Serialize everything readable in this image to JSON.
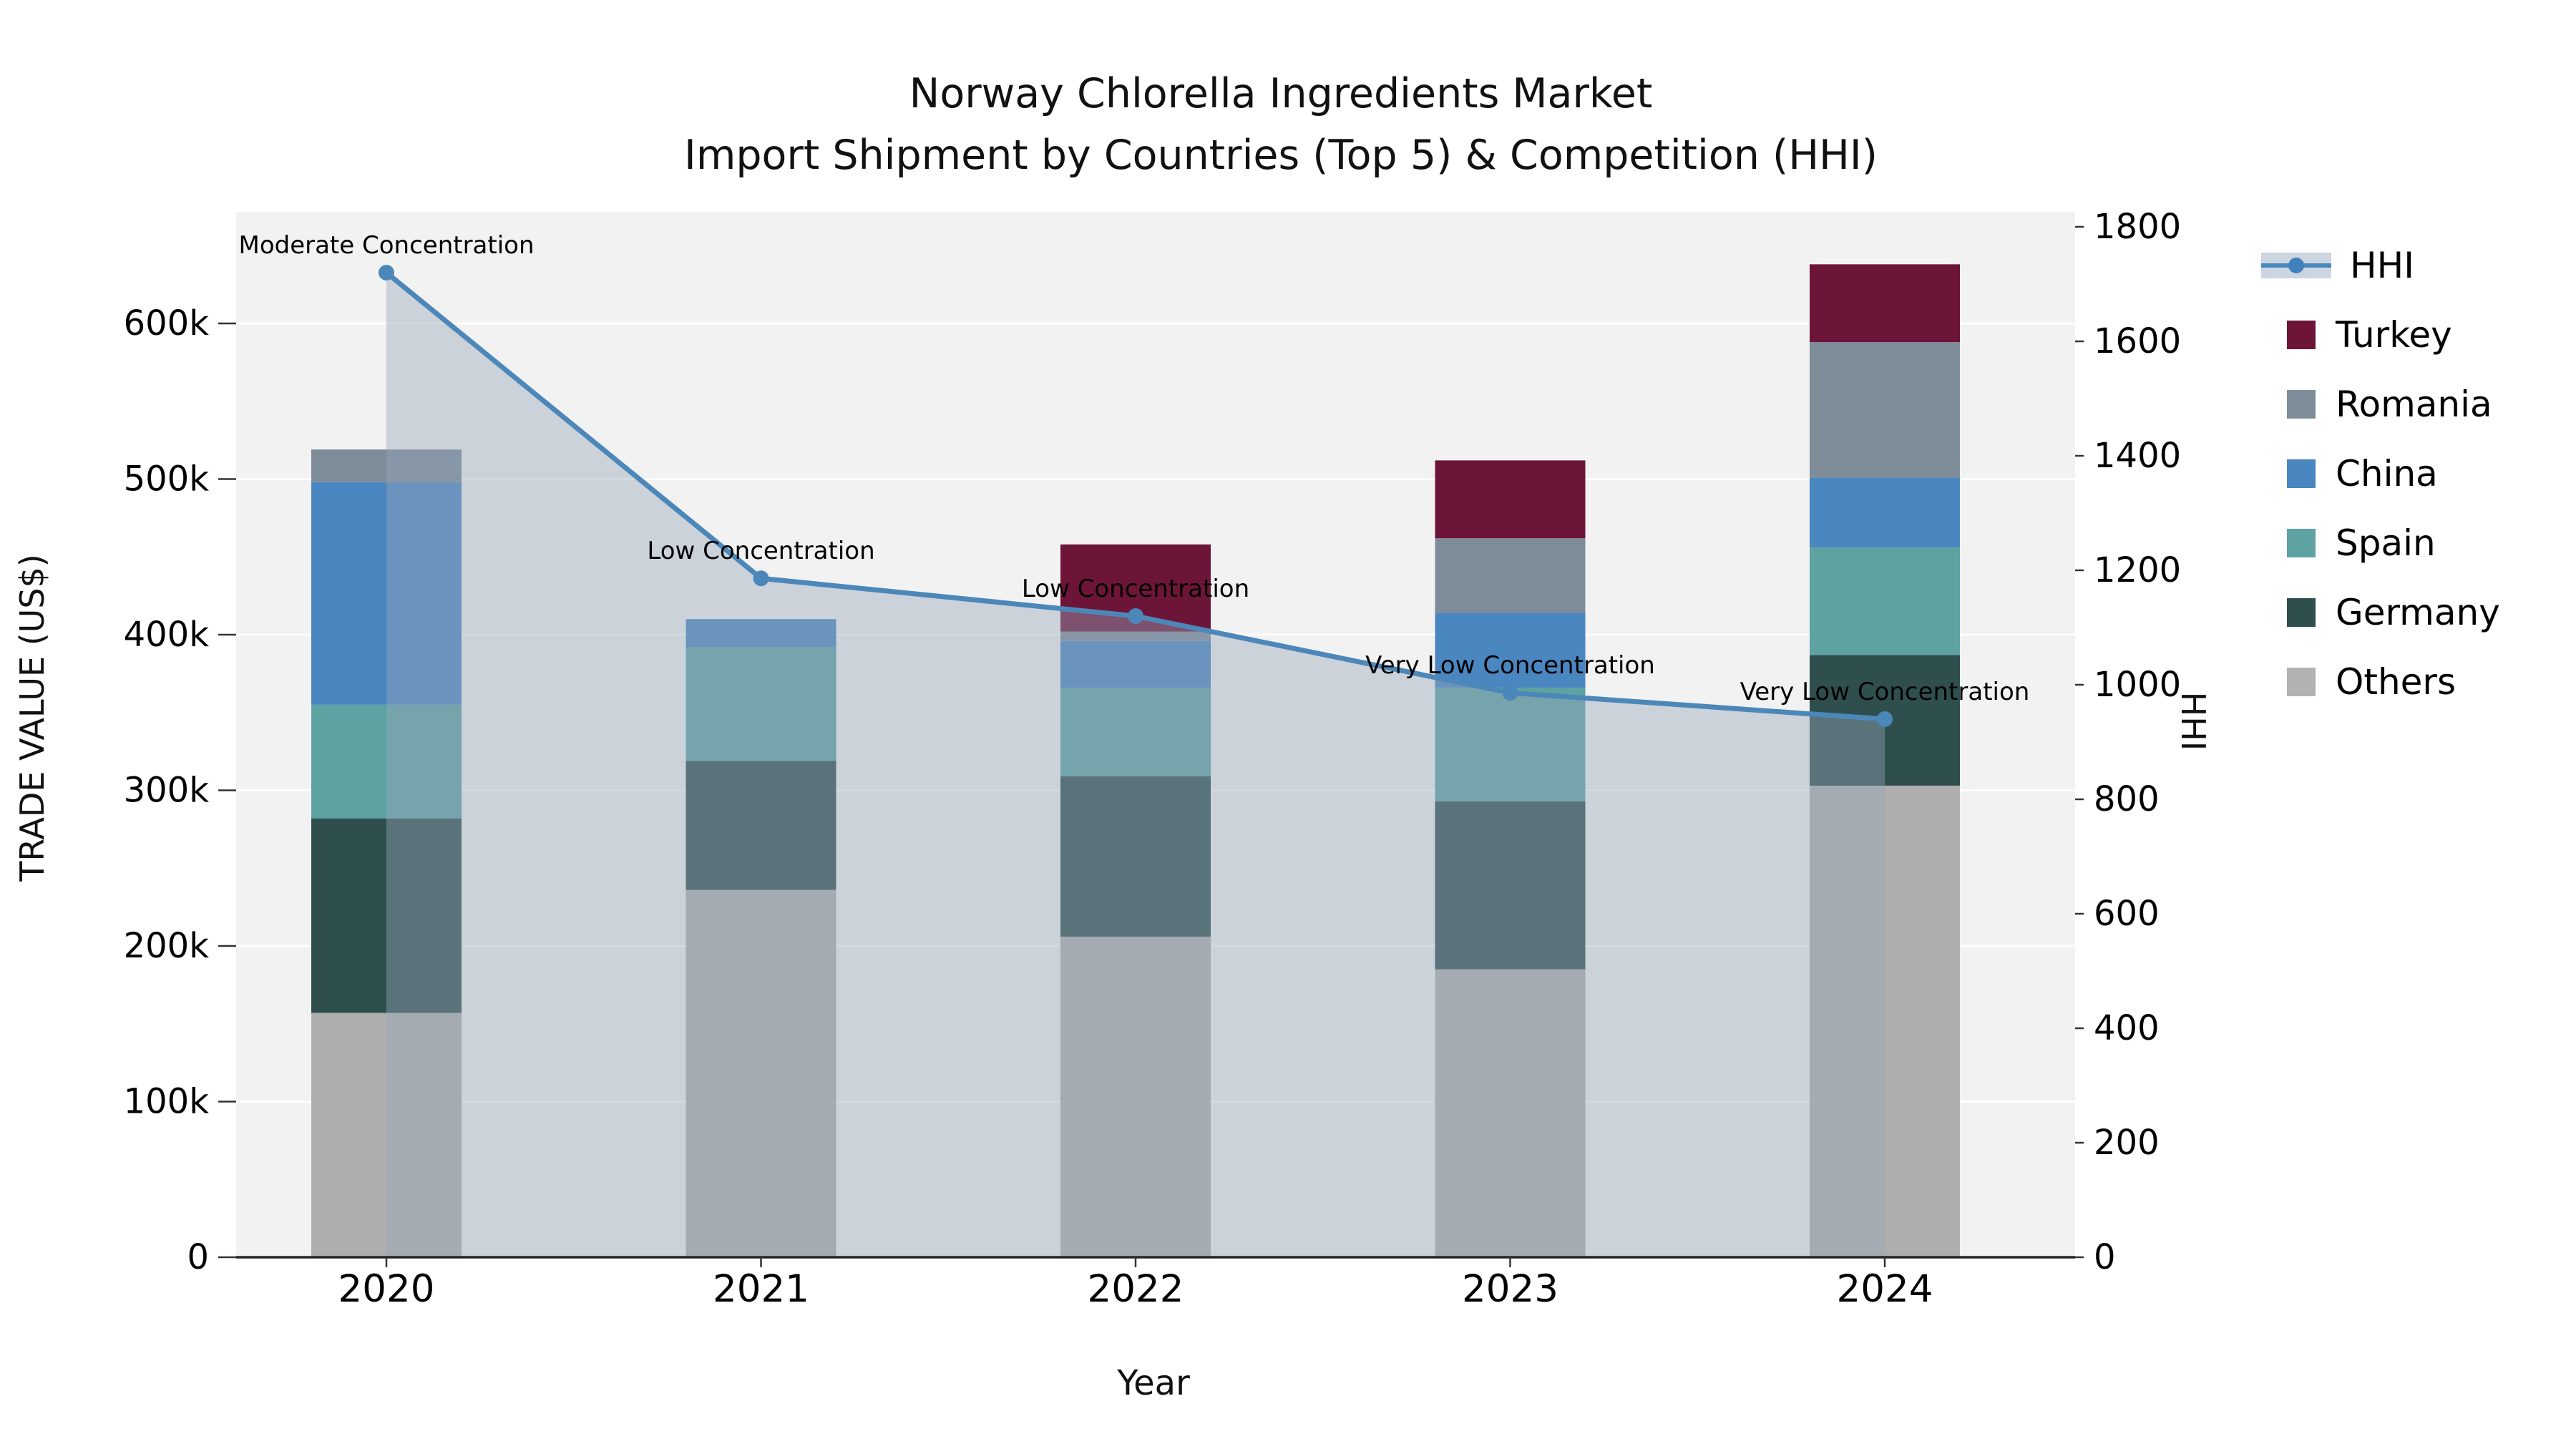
{
  "title": {
    "line1": "Norway Chlorella Ingredients Market",
    "line2": "Import Shipment by Countries (Top 5) & Competition (HHI)"
  },
  "axes": {
    "left_label": "TRADE VALUE (US$)",
    "right_label": "HHI",
    "x_label": "Year",
    "left_ticks": [
      {
        "label": "0",
        "value_k": 0
      },
      {
        "label": "100k",
        "value_k": 100
      },
      {
        "label": "200k",
        "value_k": 200
      },
      {
        "label": "300k",
        "value_k": 300
      },
      {
        "label": "400k",
        "value_k": 400
      },
      {
        "label": "500k",
        "value_k": 500
      },
      {
        "label": "600k",
        "value_k": 600
      }
    ],
    "right_ticks": [
      0,
      200,
      400,
      600,
      800,
      1000,
      1200,
      1400,
      1600,
      1800
    ]
  },
  "chart_data": {
    "type": "bar",
    "subtype": "stacked-bars-with-line",
    "categories": [
      "2020",
      "2021",
      "2022",
      "2023",
      "2024"
    ],
    "title": "Norway Chlorella Ingredients Market — Import Shipment by Countries (Top 5) & Competition (HHI)",
    "xlabel": "Year",
    "ylabel": "TRADE VALUE (US$)",
    "y2label": "HHI",
    "ylim_left_k": [
      0,
      600
    ],
    "ylim_right": [
      0,
      1800
    ],
    "grid": "horizontal-major-100k",
    "legend_position": "right-outside",
    "series": [
      {
        "name": "Others",
        "color": "#aeaeae",
        "values_k": [
          157,
          236,
          206,
          185,
          303
        ]
      },
      {
        "name": "Germany",
        "color": "#2f4f4f",
        "values_k": [
          125,
          83,
          103,
          108,
          84
        ]
      },
      {
        "name": "Spain",
        "color": "#5fa2a2",
        "values_k": [
          73,
          73,
          57,
          73,
          69
        ]
      },
      {
        "name": "China",
        "color": "#4a86c0",
        "values_k": [
          143,
          18,
          30,
          48,
          45
        ]
      },
      {
        "name": "Romania",
        "color": "#7e8c9a",
        "values_k": [
          21,
          0,
          6,
          48,
          87
        ]
      },
      {
        "name": "Turkey",
        "color": "#6d1538",
        "values_k": [
          0,
          0,
          56,
          50,
          50
        ]
      }
    ],
    "totals_k": [
      519,
      410,
      458,
      512,
      638
    ],
    "line": {
      "name": "HHI",
      "color": "#4c87b9",
      "area_color": "rgba(151,166,186,0.42)",
      "marker": "circle",
      "values": [
        1720,
        1186,
        1120,
        986,
        940
      ]
    },
    "annotations": [
      "Moderate Concentration",
      "Low Concentration",
      "Low Concentration",
      "Very Low Concentration",
      "Very Low Concentration"
    ]
  },
  "legend": {
    "items": [
      {
        "label": "HHI",
        "type": "line-marker",
        "color": "#4c87b9"
      },
      {
        "label": "Turkey",
        "type": "swatch",
        "color": "#6d1538"
      },
      {
        "label": "Romania",
        "type": "swatch",
        "color": "#7e8c9a"
      },
      {
        "label": "China",
        "type": "swatch",
        "color": "#4a86c0"
      },
      {
        "label": "Spain",
        "type": "swatch",
        "color": "#5fa2a2"
      },
      {
        "label": "Germany",
        "type": "swatch",
        "color": "#2f4f4f"
      },
      {
        "label": "Others",
        "type": "swatch",
        "color": "#b2b2b2"
      }
    ]
  }
}
